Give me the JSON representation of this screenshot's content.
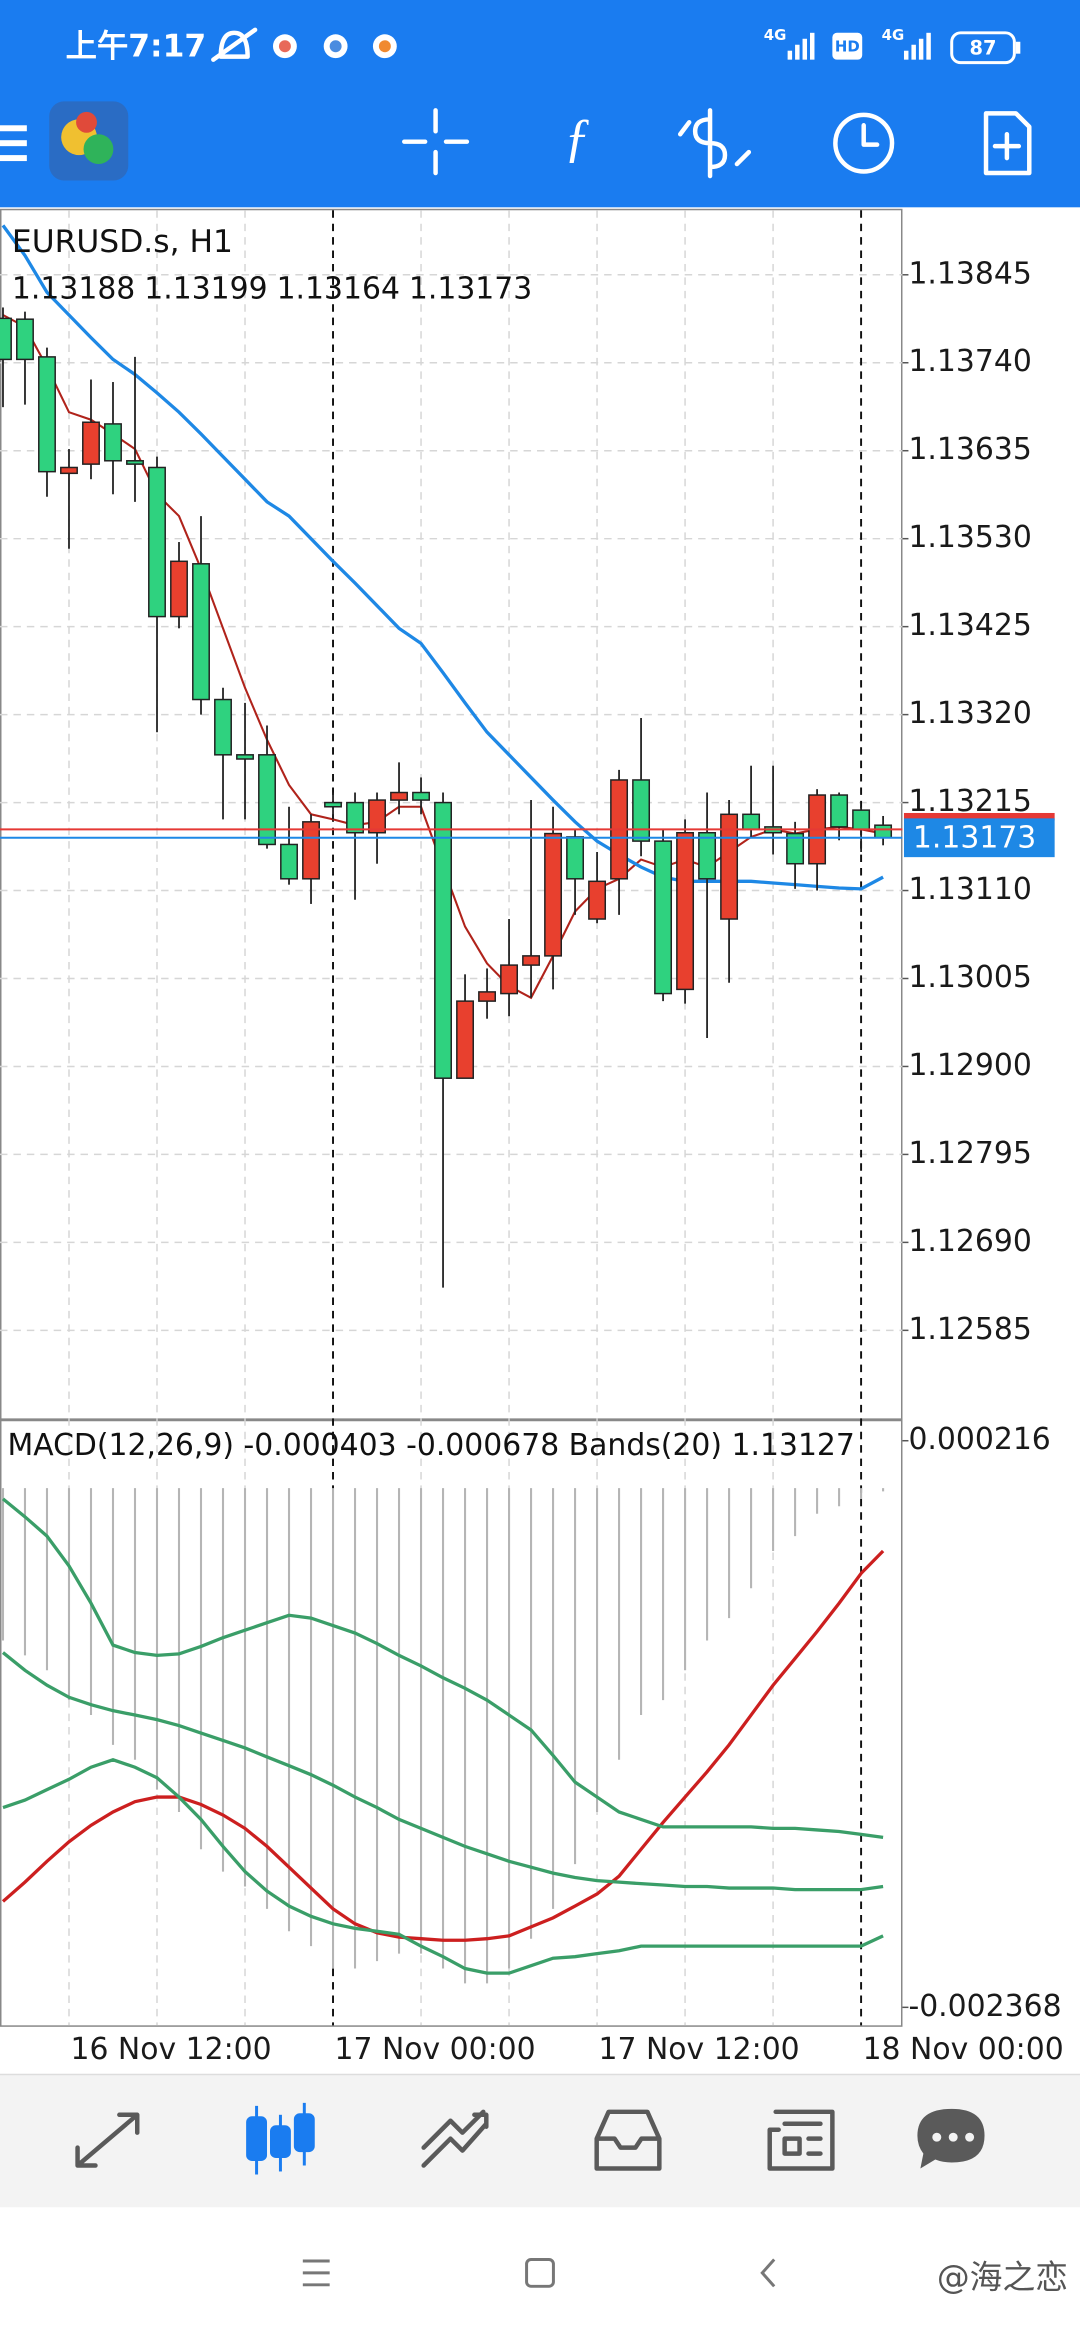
{
  "status_bar": {
    "time": "上午7:17",
    "network_1": "4G",
    "hd": "HD",
    "network_2": "4G",
    "battery": "87"
  },
  "watermark": "@海之恋",
  "chart_data": [
    {
      "type": "candlestick",
      "title": "EURUSD.s, H1",
      "categories": [
        null,
        null,
        null,
        "16 Nov 12:00",
        null,
        null,
        null,
        null,
        null,
        null,
        null,
        null,
        null,
        null,
        null,
        "17 Nov 00:00",
        null,
        null,
        null,
        null,
        null,
        null,
        null,
        null,
        null,
        null,
        null,
        "17 Nov 12:00",
        null,
        null,
        null,
        null,
        null,
        null,
        null,
        null,
        null,
        null,
        null,
        "18 Nov 00:00",
        null
      ],
      "candles": [
        [
          1.13793,
          1.13806,
          1.13687,
          1.13744
        ],
        [
          1.13792,
          1.13801,
          1.1369,
          1.13744
        ],
        [
          1.13747,
          1.13758,
          1.1358,
          1.1361
        ],
        [
          1.13608,
          1.13637,
          1.13518,
          1.13615
        ],
        [
          1.13619,
          1.1372,
          1.13601,
          1.13669
        ],
        [
          1.13667,
          1.13717,
          1.13583,
          1.13623
        ],
        [
          1.13623,
          1.13747,
          1.13574,
          1.13619
        ],
        [
          1.13615,
          1.13628,
          1.13299,
          1.13437
        ],
        [
          1.13437,
          1.13526,
          1.13423,
          1.13503
        ],
        [
          1.135,
          1.13557,
          1.1332,
          1.13338
        ],
        [
          1.13338,
          1.13352,
          1.13195,
          1.13272
        ],
        [
          1.13272,
          1.13334,
          1.13195,
          1.13267
        ],
        [
          1.13272,
          1.13307,
          1.1316,
          1.13165
        ],
        [
          1.13165,
          1.1321,
          1.13117,
          1.13124
        ],
        [
          1.13124,
          1.13201,
          1.13094,
          1.13192
        ],
        [
          1.13215,
          1.13227,
          1.13195,
          1.1321
        ],
        [
          1.13215,
          1.13227,
          1.13099,
          1.13179
        ],
        [
          1.13179,
          1.13227,
          1.13142,
          1.13218
        ],
        [
          1.13218,
          1.13263,
          1.13201,
          1.13227
        ],
        [
          1.13227,
          1.13245,
          1.13201,
          1.13218
        ],
        [
          1.13215,
          1.13227,
          1.12636,
          1.12886
        ],
        [
          1.12886,
          1.1301,
          1.12886,
          1.12978
        ],
        [
          1.12978,
          1.13017,
          1.12957,
          1.12989
        ],
        [
          1.12987,
          1.13076,
          1.1296,
          1.13021
        ],
        [
          1.13021,
          1.13218,
          1.12982,
          1.13032
        ],
        [
          1.13032,
          1.1321,
          1.12992,
          1.13178
        ],
        [
          1.13174,
          1.13183,
          1.13081,
          1.13124
        ],
        [
          1.13076,
          1.13156,
          1.13071,
          1.13121
        ],
        [
          1.13124,
          1.13254,
          1.13081,
          1.13242
        ],
        [
          1.13242,
          1.13316,
          1.13151,
          1.13169
        ],
        [
          1.13169,
          1.13183,
          1.12978,
          1.12987
        ],
        [
          1.12992,
          1.13195,
          1.12975,
          1.13179
        ],
        [
          1.13179,
          1.13227,
          1.12934,
          1.13124
        ],
        [
          1.13076,
          1.13218,
          1.13,
          1.13201
        ],
        [
          1.13201,
          1.13259,
          1.13174,
          1.13183
        ],
        [
          1.13186,
          1.13259,
          1.13153,
          1.13179
        ],
        [
          1.13178,
          1.13192,
          1.13112,
          1.13142
        ],
        [
          1.13142,
          1.13231,
          1.1311,
          1.13224
        ],
        [
          1.13224,
          1.13227,
          1.1317,
          1.13186
        ],
        [
          1.13206,
          1.1321,
          1.13156,
          1.13183
        ],
        [
          1.13188,
          1.13199,
          1.13164,
          1.13173
        ]
      ],
      "up_color": "#e8402e",
      "down_color": "#2fd27f",
      "series": [
        {
          "color": "#b0231b",
          "values": [
            1.13797,
            1.13783,
            1.13735,
            1.13681,
            1.13672,
            1.13655,
            1.13637,
            1.13583,
            1.13557,
            1.13494,
            1.13423,
            1.13352,
            1.1329,
            1.13236,
            1.13201,
            1.13195,
            1.13188,
            1.13192,
            1.1321,
            1.1321,
            1.13138,
            1.13067,
            1.13023,
            1.12996,
            1.12982,
            1.13032,
            1.13085,
            1.13112,
            1.13124,
            1.13147,
            1.13138,
            1.13147,
            1.13138,
            1.13156,
            1.13174,
            1.13183,
            1.13178,
            1.13183,
            1.13186,
            1.13183,
            1.13178
          ]
        },
        {
          "color": "#1e88e5",
          "values": [
            1.13904,
            1.13868,
            1.13824,
            1.13797,
            1.1377,
            1.13744,
            1.13726,
            1.13704,
            1.13681,
            1.13655,
            1.13628,
            1.13601,
            1.13574,
            1.13557,
            1.1353,
            1.13503,
            1.13477,
            1.1345,
            1.13423,
            1.13405,
            1.1337,
            1.13334,
            1.13299,
            1.13272,
            1.13245,
            1.13218,
            1.13192,
            1.13169,
            1.13153,
            1.13138,
            1.13126,
            1.13121,
            1.13121,
            1.13121,
            1.13121,
            1.13119,
            1.13117,
            1.13115,
            1.13113,
            1.13112,
            1.13126
          ]
        }
      ],
      "ask": 1.13183,
      "ask_color": "#e53935",
      "bid_color": "#1e88e5",
      "ylim": [
        1.1248,
        1.13922
      ],
      "yticks": [
        1.13845,
        {
          "value": 1.1374,
          "label": "1.13740"
        },
        1.13635,
        {
          "value": 1.1353,
          "label": "1.13530"
        },
        1.13425,
        {
          "value": 1.1332,
          "label": "1.13320"
        },
        1.13215,
        {
          "value": 1.1311,
          "label": "1.13110"
        },
        1.13005,
        {
          "value": 1.129,
          "label": "1.12900"
        },
        1.12795,
        {
          "value": 1.1269,
          "label": "1.12690"
        },
        1.12585
      ],
      "grid": true
    },
    {
      "type": "macd",
      "title": "MACD(12,26,9) -0.000403 -0.000678 Bands(20) 1.13127",
      "histogram": {
        "color": "#b5b5b5",
        "values": [
          -0.000695,
          -0.000763,
          -0.000831,
          -0.000967,
          -0.001035,
          -0.001171,
          -0.001239,
          -0.001375,
          -0.001477,
          -0.001647,
          -0.001749,
          -0.001817,
          -0.001919,
          -0.002021,
          -0.002089,
          -0.002191,
          -0.002191,
          -0.002157,
          -0.002123,
          -0.002123,
          -0.002191,
          -0.002259,
          -0.002259,
          -0.002191,
          -0.002055,
          -0.001919,
          -0.001715,
          -0.001477,
          -0.001239,
          -0.001035,
          -0.000967,
          -0.000831,
          -0.000695,
          -0.000593,
          -0.000457,
          -0.000287,
          -0.000219,
          -0.000117,
          -8.3e-05,
          -4.9e-05,
          -1.5e-05
        ]
      },
      "series": [
        {
          "color": "#cc1f1f",
          "values": [
            -0.001885,
            -0.001797,
            -0.001702,
            -0.001613,
            -0.001538,
            -0.001477,
            -0.00143,
            -0.001409,
            -0.001409,
            -0.001443,
            -0.001491,
            -0.001552,
            -0.001634,
            -0.001729,
            -0.001824,
            -0.001919,
            -0.001987,
            -0.002028,
            -0.002048,
            -0.002055,
            -0.002062,
            -0.002062,
            -0.002055,
            -0.002042,
            -0.002001,
            -0.00196,
            -0.001906,
            -0.001851,
            -0.00177,
            -0.001647,
            -0.001525,
            -0.001409,
            -0.001294,
            -0.001171,
            -0.001035,
            -0.000899,
            -0.000777,
            -0.000654,
            -0.000525,
            -0.000389,
            -0.000287
          ]
        },
        {
          "color": "#3a9e68",
          "values": [
            -4.9e-05,
            -0.000131,
            -0.000219,
            -0.000355,
            -0.000525,
            -0.000716,
            -0.00075,
            -0.000763,
            -0.000756,
            -0.000722,
            -0.000682,
            -0.000648,
            -0.000614,
            -0.00058,
            -0.000593,
            -0.000627,
            -0.000661,
            -0.000709,
            -0.000763,
            -0.000811,
            -0.000865,
            -0.000913,
            -0.000967,
            -0.001035,
            -0.001103,
            -0.001219,
            -0.001341,
            -0.001409,
            -0.001477,
            -0.001511,
            -0.001545,
            -0.001545,
            -0.001545,
            -0.001545,
            -0.001545,
            -0.001552,
            -0.001552,
            -0.001559,
            -0.001566,
            -0.001579,
            -0.001593
          ]
        },
        {
          "color": "#3a9e68",
          "values": [
            -0.00075,
            -0.000831,
            -0.000899,
            -0.000954,
            -0.000988,
            -0.001015,
            -0.001035,
            -0.001056,
            -0.001083,
            -0.001117,
            -0.001151,
            -0.001185,
            -0.001226,
            -0.001266,
            -0.001307,
            -0.001355,
            -0.001409,
            -0.001457,
            -0.001511,
            -0.001552,
            -0.001593,
            -0.001634,
            -0.001668,
            -0.001702,
            -0.001729,
            -0.001756,
            -0.001776,
            -0.00179,
            -0.001797,
            -0.001804,
            -0.00181,
            -0.001817,
            -0.001817,
            -0.001824,
            -0.001824,
            -0.001824,
            -0.001831,
            -0.001831,
            -0.001831,
            -0.001831,
            -0.001817
          ]
        },
        {
          "color": "#3a9e68",
          "values": [
            -0.001457,
            -0.001423,
            -0.001375,
            -0.001328,
            -0.001273,
            -0.001239,
            -0.001273,
            -0.001321,
            -0.001409,
            -0.001511,
            -0.001634,
            -0.001749,
            -0.001838,
            -0.001906,
            -0.001953,
            -0.001987,
            -0.002008,
            -0.002021,
            -0.002035,
            -0.002089,
            -0.002137,
            -0.002191,
            -0.002212,
            -0.002212,
            -0.002178,
            -0.002144,
            -0.002137,
            -0.002123,
            -0.00211,
            -0.002089,
            -0.002089,
            -0.002089,
            -0.002089,
            -0.002089,
            -0.002089,
            -0.002089,
            -0.002089,
            -0.002089,
            -0.002089,
            -0.002089,
            -0.002042
          ]
        }
      ],
      "ylim": [
        -0.00245,
        0.000291
      ],
      "yticks": [
        0.000216,
        -0.002368
      ]
    }
  ]
}
